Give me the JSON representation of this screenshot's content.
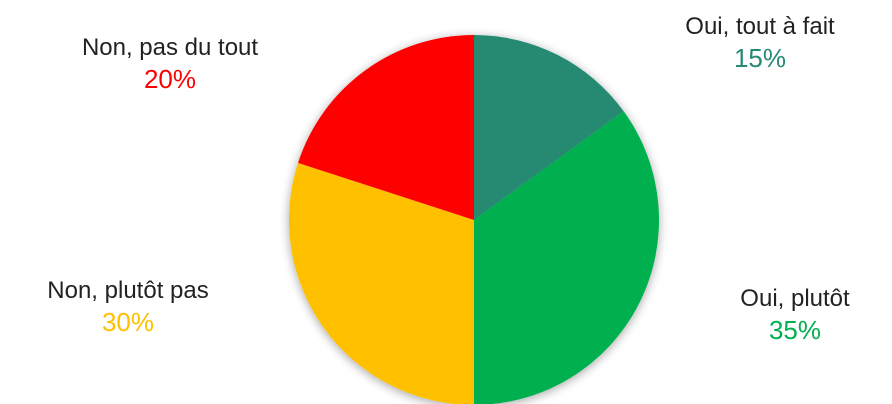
{
  "chart_data": {
    "type": "pie",
    "title": "",
    "start_angle_deg": 0,
    "direction": "clockwise",
    "slices": [
      {
        "label": "Oui, tout à fait",
        "value": 15,
        "value_label": "15%",
        "color": "#268A73"
      },
      {
        "label": "Oui, plutôt",
        "value": 35,
        "value_label": "35%",
        "color": "#00B050"
      },
      {
        "label": "Non, plutôt pas",
        "value": 30,
        "value_label": "30%",
        "color": "#FFC000"
      },
      {
        "label": "Non, pas du tout",
        "value": 20,
        "value_label": "20%",
        "color": "#FF0000"
      }
    ]
  }
}
